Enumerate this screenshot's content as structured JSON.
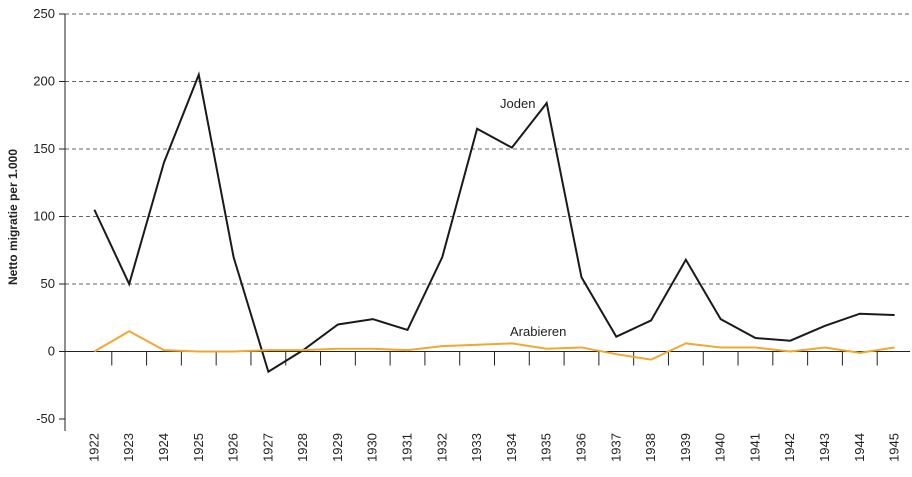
{
  "chart_data": {
    "type": "line",
    "y_label": "Netto migratie per 1.000",
    "categories": [
      "1922",
      "1923",
      "1924",
      "1925",
      "1926",
      "1927",
      "1928",
      "1929",
      "1930",
      "1931",
      "1932",
      "1933",
      "1934",
      "1935",
      "1936",
      "1937",
      "1938",
      "1939",
      "1940",
      "1941",
      "1942",
      "1943",
      "1944",
      "1945"
    ],
    "series": [
      {
        "name": "Joden",
        "color": "#1a1a1a",
        "values": [
          105,
          50,
          140,
          205,
          70,
          -15,
          1,
          20,
          24,
          16,
          70,
          165,
          151,
          184,
          55,
          11,
          23,
          68,
          24,
          10,
          8,
          19,
          28,
          27
        ]
      },
      {
        "name": "Arabieren",
        "color": "#f0a830",
        "values": [
          0,
          15,
          1,
          0,
          0,
          1,
          1,
          2,
          2,
          1,
          4,
          5,
          6,
          2,
          3,
          -2,
          -6,
          6,
          3,
          3,
          0,
          3,
          -1,
          3
        ]
      }
    ],
    "ylim": [
      -50,
      250
    ],
    "yticks": [
      -50,
      0,
      50,
      100,
      150,
      200,
      250
    ],
    "grid": true
  }
}
